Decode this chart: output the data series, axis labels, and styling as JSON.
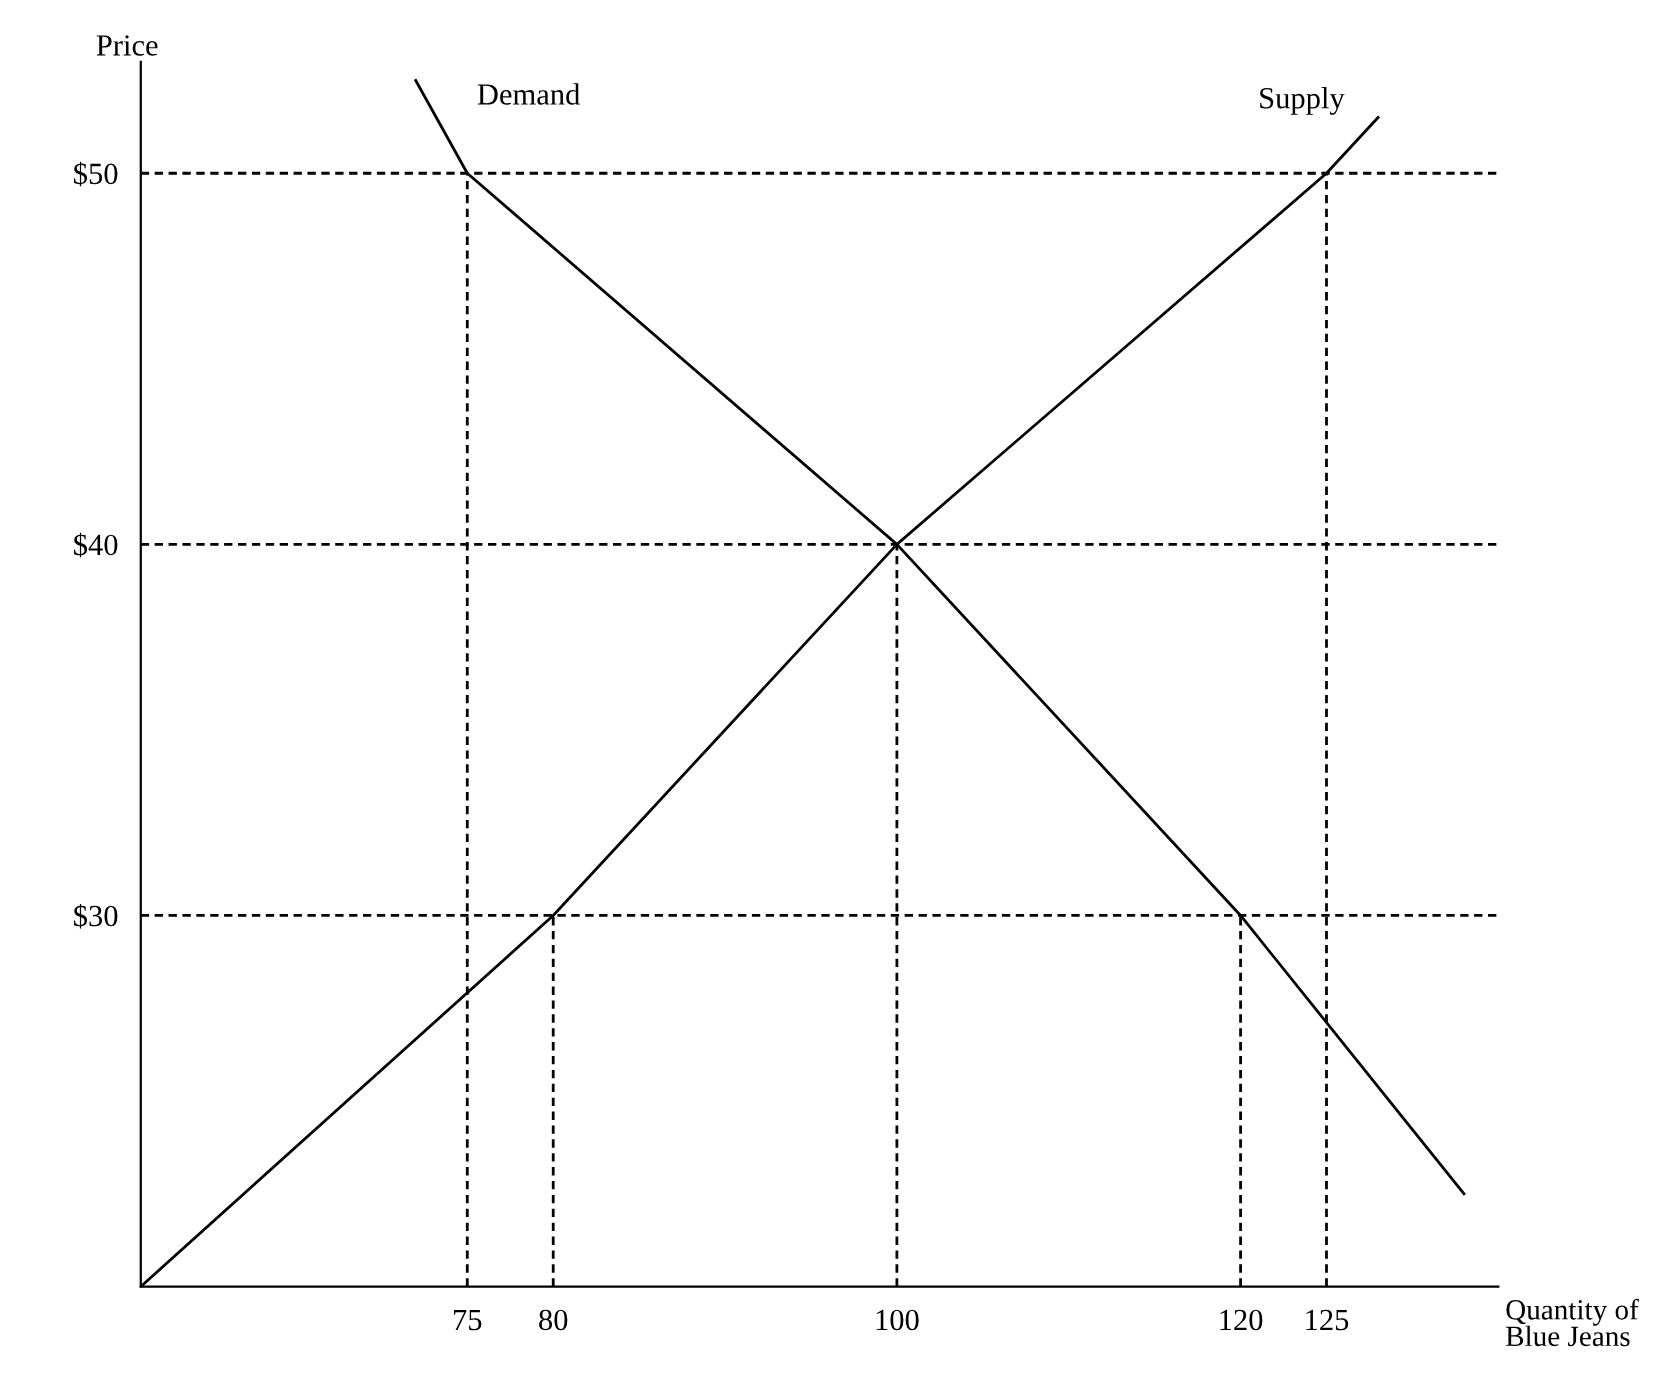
{
  "chart_data": {
    "type": "line",
    "xlabel": "Quantity of\nBlue Jeans",
    "ylabel": "Price",
    "xlim": [
      56,
      135
    ],
    "ylim": [
      20,
      53
    ],
    "xticks": [
      75,
      80,
      100,
      120,
      125
    ],
    "yticks": [
      {
        "value": 30,
        "label": "$30"
      },
      {
        "value": 40,
        "label": "$40"
      },
      {
        "value": 50,
        "label": "$50"
      }
    ],
    "grid": false,
    "legend": false,
    "marker": "none",
    "series": [
      {
        "name": "Demand",
        "color": "#000000",
        "x": [
          72,
          75,
          100,
          120,
          133
        ],
        "values": [
          52.5,
          50,
          40,
          30,
          22.5
        ]
      },
      {
        "name": "Supply",
        "color": "#000000",
        "x": [
          56,
          80,
          100,
          125,
          128
        ],
        "values": [
          20,
          30,
          40,
          50,
          51.5
        ]
      }
    ],
    "ref_lines": [
      {
        "axis": "y",
        "value": 50,
        "color": "#000000",
        "line_style": "dashed"
      },
      {
        "axis": "y",
        "value": 40,
        "color": "#000000",
        "line_style": "dashed"
      },
      {
        "axis": "y",
        "value": 30,
        "color": "#000000",
        "line_style": "dashed"
      },
      {
        "axis": "x",
        "value": 75,
        "color": "#000000",
        "line_style": "dashed"
      },
      {
        "axis": "x",
        "value": 80,
        "color": "#000000",
        "line_style": "dashed"
      },
      {
        "axis": "x",
        "value": 100,
        "color": "#000000",
        "line_style": "dashed"
      },
      {
        "axis": "x",
        "value": 120,
        "color": "#000000",
        "line_style": "dashed"
      },
      {
        "axis": "x",
        "value": 125,
        "color": "#000000",
        "line_style": "dashed"
      }
    ]
  }
}
